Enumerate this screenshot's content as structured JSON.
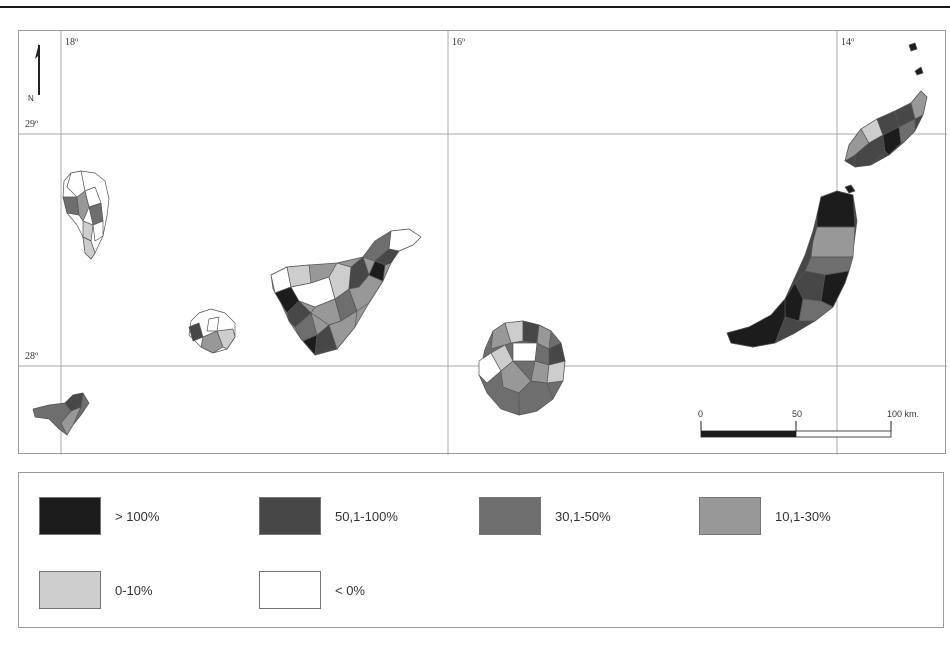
{
  "map": {
    "coordinates": {
      "lon_18": "18º",
      "lon_16": "16º",
      "lon_14": "14º",
      "lat_29": "29º",
      "lat_28": "28º"
    },
    "north_label": "N",
    "scale": {
      "zero": "0",
      "mid": "50",
      "end": "100 km."
    }
  },
  "legend": {
    "items": [
      {
        "label": "> 100%",
        "color": "#1c1c1c"
      },
      {
        "label": "50,1-100%",
        "color": "#474747"
      },
      {
        "label": "30,1-50%",
        "color": "#6e6e6e"
      },
      {
        "label": "10,1-30%",
        "color": "#989898"
      },
      {
        "label": "0-10%",
        "color": "#cdcdcd"
      },
      {
        "label": "< 0%",
        "color": "#ffffff"
      }
    ]
  }
}
